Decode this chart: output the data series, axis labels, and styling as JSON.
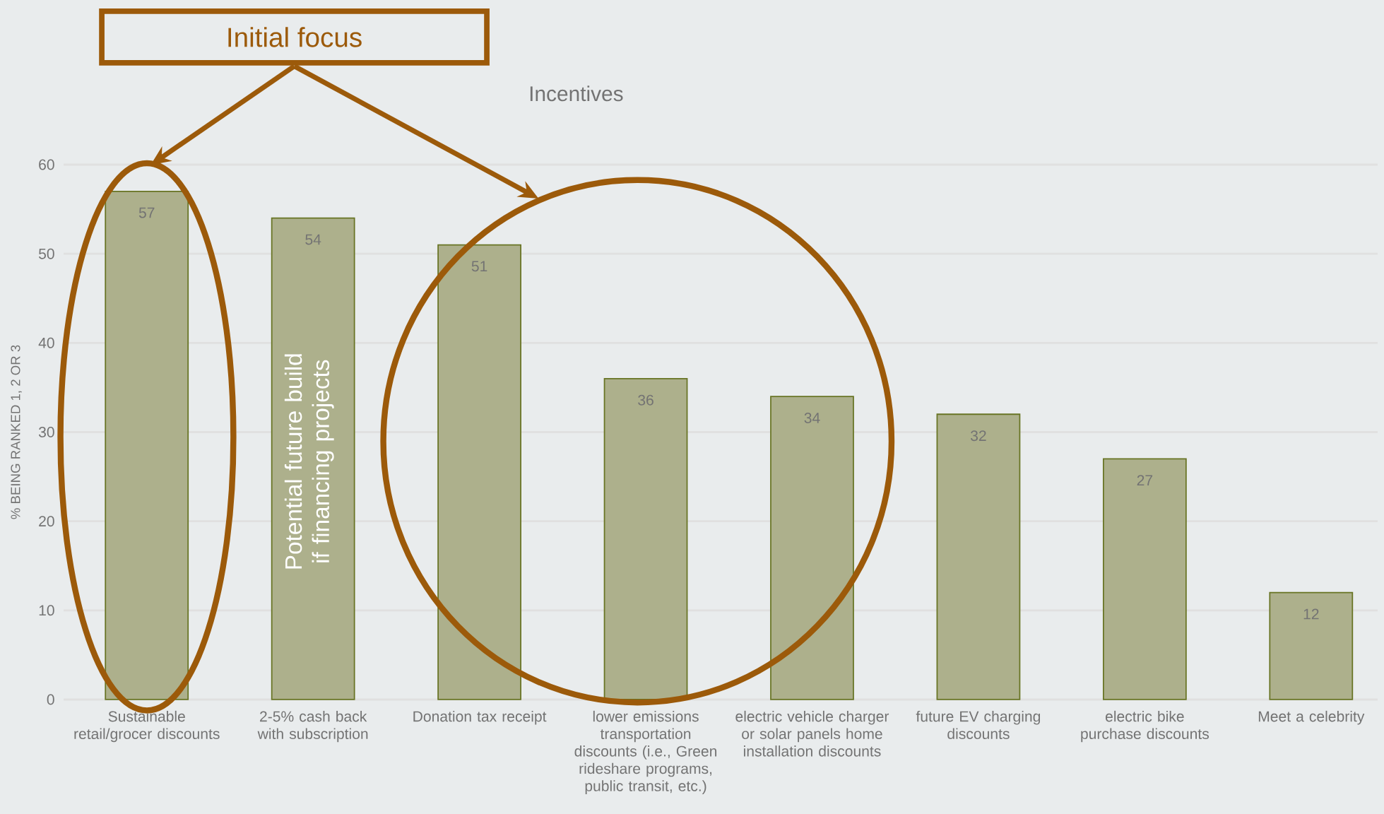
{
  "chart_data": {
    "type": "bar",
    "title": "Incentives",
    "ylabel": "% BEING RANKED 1, 2 OR 3",
    "categories": [
      "Sustainable retail/grocer discounts",
      "2-5% cash back with subscription",
      "Donation tax receipt",
      "lower emissions transportation discounts (i.e., Green rideshare programs, public transit, etc.)",
      "electric vehicle charger or solar panels home installation discounts",
      "future EV charging discounts",
      "electric bike purchase discounts",
      "Meet a celebrity"
    ],
    "values": [
      57,
      54,
      51,
      36,
      34,
      32,
      27,
      12
    ],
    "color": "#adb08c",
    "ylim": [
      0,
      60
    ],
    "yticks": [
      0,
      10,
      20,
      30,
      40,
      50,
      60
    ],
    "grid": "y",
    "data_labels": true,
    "annotations": [
      "Initial focus",
      "Potential future build if financing projects"
    ]
  }
}
